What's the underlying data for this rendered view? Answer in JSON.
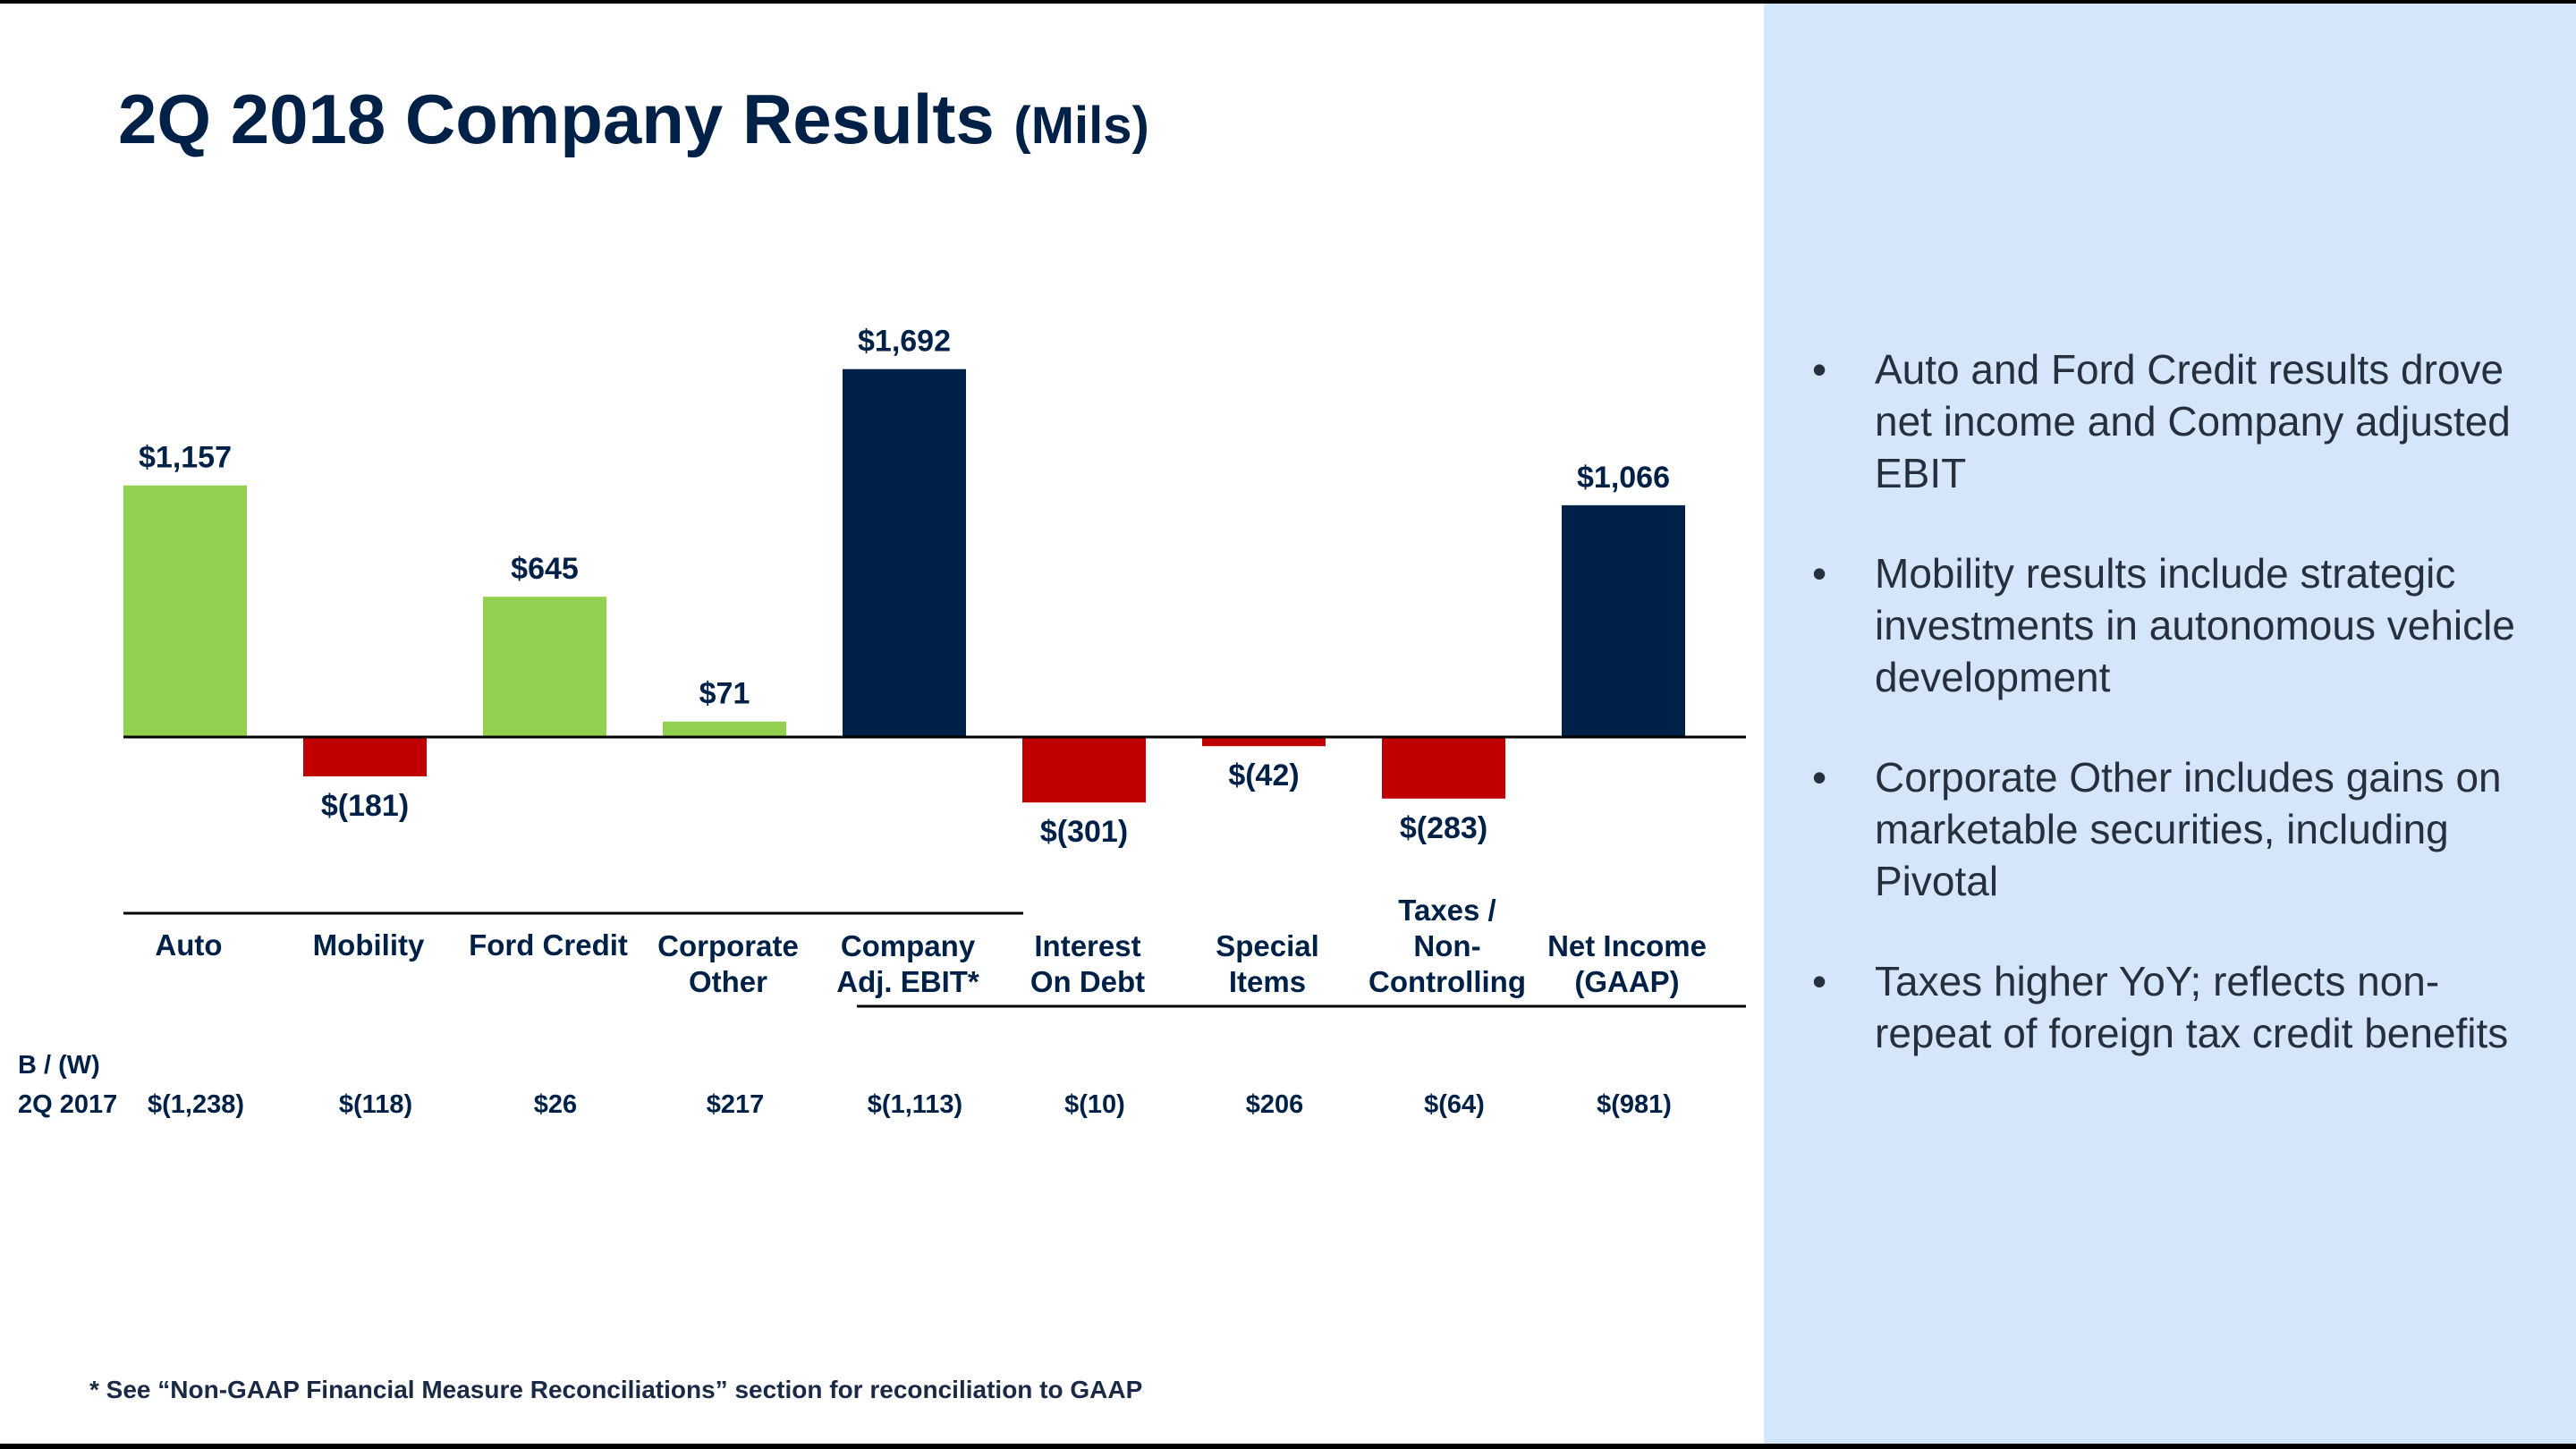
{
  "title": "2Q 2018 Company Results",
  "title_unit": "(Mils)",
  "colors": {
    "positive": "#92d050",
    "negative": "#c00000",
    "total": "#002147",
    "text": "#002147",
    "panel": "#d5e6fb",
    "border": "#000000"
  },
  "bullets": [
    "Auto and Ford Credit results drove net income and Company adjusted EBIT",
    "Mobility results include strategic investments in autonomous vehicle development",
    "Corporate Other includes gains on marketable securities, including Pivotal",
    "Taxes higher YoY; reflects non-repeat of foreign tax credit benefits"
  ],
  "footnote": "* See “Non-GAAP Financial Measure Reconciliations” section for reconciliation to GAAP",
  "chart_data": {
    "type": "bar",
    "title": "2Q 2018 Company Results (Mils)",
    "categories": [
      [
        "Auto"
      ],
      [
        "Mobility"
      ],
      [
        "Ford Credit"
      ],
      [
        "Corporate",
        "Other"
      ],
      [
        "Company",
        "Adj. EBIT*"
      ],
      [
        "Interest",
        "On Debt"
      ],
      [
        "Special",
        "Items"
      ],
      [
        "Taxes /",
        "Non-",
        "Controlling"
      ],
      [
        "Net Income",
        "(GAAP)"
      ]
    ],
    "values": [
      1157,
      -181,
      645,
      71,
      1692,
      -301,
      -42,
      -283,
      1066
    ],
    "value_labels": [
      "$1,157",
      "$(181)",
      "$645",
      "$71",
      "$1,692",
      "$(301)",
      "$(42)",
      "$(283)",
      "$1,066"
    ],
    "bar_kind": [
      "component",
      "component",
      "component",
      "component",
      "total",
      "component",
      "component",
      "component",
      "total"
    ],
    "ylim": [
      -400,
      1800
    ],
    "xlabel": "",
    "ylabel": "",
    "grid": false,
    "comparison": {
      "label_lines": [
        "B / (W)",
        "2Q 2017"
      ],
      "values": [
        "$(1,238)",
        "$(118)",
        "$26",
        "$217",
        "$(1,113)",
        "$(10)",
        "$206",
        "$(64)",
        "$(981)"
      ]
    }
  }
}
